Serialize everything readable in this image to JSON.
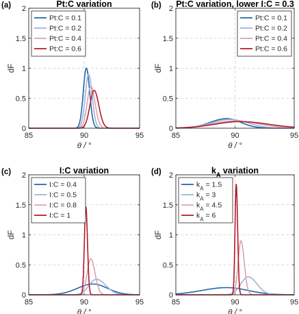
{
  "chart_data": [
    {
      "type": "line",
      "panel_label": "(a)",
      "title": "Pt:C variation",
      "title_sub": "",
      "xlabel": "θ / °",
      "ylabel": "dF",
      "xlim": [
        85,
        95
      ],
      "ylim": [
        0,
        2
      ],
      "xticks": [
        85,
        90,
        95
      ],
      "yticks": [
        0,
        0.5,
        1,
        1.5,
        2
      ],
      "grid": true,
      "legend_position": "top-left",
      "series": [
        {
          "name": "Pt:C = 0.1",
          "name_sub": "",
          "name_suffix": "",
          "color": "#2166ac",
          "peak_x": 90.2,
          "peak_y": 1.0,
          "sigma_left": 0.28,
          "sigma_right": 0.3
        },
        {
          "name": "Pt:C = 0.2",
          "name_sub": "",
          "name_suffix": "",
          "color": "#9fb3d6",
          "peak_x": 90.4,
          "peak_y": 0.9,
          "sigma_left": 0.3,
          "sigma_right": 0.32
        },
        {
          "name": "Pt:C = 0.4",
          "name_sub": "",
          "name_suffix": "",
          "color": "#d9a3ae",
          "peak_x": 90.6,
          "peak_y": 0.7,
          "sigma_left": 0.33,
          "sigma_right": 0.38
        },
        {
          "name": "Pt:C = 0.6",
          "name_sub": "",
          "name_suffix": "",
          "color": "#b2182b",
          "peak_x": 90.9,
          "peak_y": 0.63,
          "sigma_left": 0.38,
          "sigma_right": 0.42
        }
      ]
    },
    {
      "type": "line",
      "panel_label": "(b)",
      "title": "Pt:C variation, lower I:C = 0.3",
      "title_sub": "",
      "xlabel": "θ / °",
      "ylabel": "dF",
      "xlim": [
        85,
        95
      ],
      "ylim": [
        0,
        2
      ],
      "xticks": [
        85,
        90,
        95
      ],
      "yticks": [
        0,
        0.5,
        1,
        1.5,
        2
      ],
      "grid": true,
      "legend_position": "top-right",
      "series": [
        {
          "name": "Pt:C = 0.1",
          "name_sub": "",
          "name_suffix": "",
          "color": "#2166ac",
          "peak_x": 89.3,
          "peak_y": 0.16,
          "sigma_left": 1.4,
          "sigma_right": 1.2
        },
        {
          "name": "Pt:C = 0.2",
          "name_sub": "",
          "name_suffix": "",
          "color": "#9fb3d6",
          "peak_x": 89.6,
          "peak_y": 0.145,
          "sigma_left": 1.6,
          "sigma_right": 1.5
        },
        {
          "name": "Pt:C = 0.4",
          "name_sub": "",
          "name_suffix": "",
          "color": "#d9a3ae",
          "peak_x": 90.0,
          "peak_y": 0.12,
          "sigma_left": 1.9,
          "sigma_right": 2.0
        },
        {
          "name": "Pt:C = 0.6",
          "name_sub": "",
          "name_suffix": "",
          "color": "#b2182b",
          "peak_x": 90.4,
          "peak_y": 0.11,
          "sigma_left": 2.1,
          "sigma_right": 2.4
        }
      ]
    },
    {
      "type": "line",
      "panel_label": "(c)",
      "title": "I:C variation",
      "title_sub": "",
      "xlabel": "θ / °",
      "ylabel": "dF",
      "xlim": [
        85,
        95
      ],
      "ylim": [
        0,
        2
      ],
      "xticks": [
        85,
        90,
        95
      ],
      "yticks": [
        0,
        0.5,
        1,
        1.5,
        2
      ],
      "grid": true,
      "legend_position": "top-left",
      "series": [
        {
          "name": "I:C = 0.4",
          "name_sub": "",
          "name_suffix": "",
          "color": "#2166ac",
          "peak_x": 90.8,
          "peak_y": 0.18,
          "sigma_left": 1.4,
          "sigma_right": 1.3
        },
        {
          "name": "I:C = 0.5",
          "name_sub": "",
          "name_suffix": "",
          "color": "#9fb3d6",
          "peak_x": 91.1,
          "peak_y": 0.26,
          "sigma_left": 0.65,
          "sigma_right": 0.85
        },
        {
          "name": "I:C = 0.8",
          "name_sub": "",
          "name_suffix": "",
          "color": "#d9a3ae",
          "peak_x": 90.6,
          "peak_y": 0.6,
          "sigma_left": 0.33,
          "sigma_right": 0.38
        },
        {
          "name": "I:C = 1",
          "name_sub": "",
          "name_suffix": "",
          "color": "#b2182b",
          "peak_x": 90.15,
          "peak_y": 1.47,
          "sigma_left": 0.13,
          "sigma_right": 0.15
        }
      ]
    },
    {
      "type": "line",
      "panel_label": "(d)",
      "title": "k",
      "title_sub": "A",
      "title_suffix": " variation",
      "xlabel": "θ / °",
      "ylabel": "dF",
      "xlim": [
        85,
        95
      ],
      "ylim": [
        0,
        2
      ],
      "xticks": [
        85,
        90,
        95
      ],
      "yticks": [
        0,
        0.5,
        1,
        1.5,
        2
      ],
      "grid": true,
      "legend_position": "top-left",
      "series": [
        {
          "name": "k",
          "name_sub": "A",
          "name_suffix": " = 1.5",
          "color": "#2166ac",
          "peak_x": 89.3,
          "peak_y": 0.12,
          "sigma_left": 2.1,
          "sigma_right": 1.8
        },
        {
          "name": "k",
          "name_sub": "A",
          "name_suffix": " = 3",
          "color": "#9fb3d6",
          "peak_x": 91.1,
          "peak_y": 0.3,
          "sigma_left": 0.6,
          "sigma_right": 0.75
        },
        {
          "name": "k",
          "name_sub": "A",
          "name_suffix": " = 4.5",
          "color": "#d9a3ae",
          "peak_x": 90.5,
          "peak_y": 0.9,
          "sigma_left": 0.24,
          "sigma_right": 0.28
        },
        {
          "name": "k",
          "name_sub": "A",
          "name_suffix": " = 6",
          "color": "#b2182b",
          "peak_x": 90.1,
          "peak_y": 1.85,
          "sigma_left": 0.1,
          "sigma_right": 0.12
        }
      ]
    }
  ]
}
